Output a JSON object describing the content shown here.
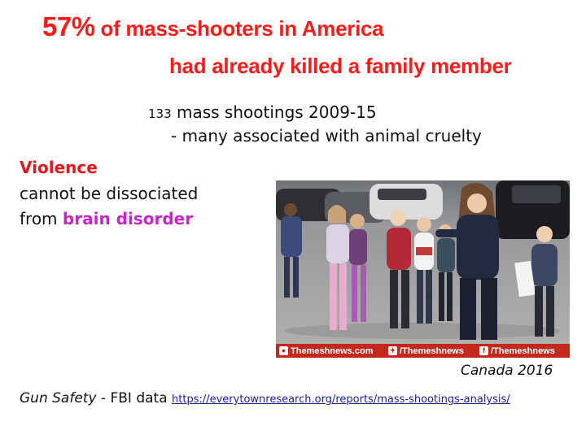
{
  "title": {
    "percent": "57%",
    "line1_rest": " of mass-shooters in America",
    "line2": "had already killed a family member"
  },
  "stat": {
    "count": "133",
    "line1_rest": " mass shootings 2009-15",
    "line2": "- many associated with animal cruelty"
  },
  "violence": {
    "heading": "Violence",
    "line2": "cannot be dissociated",
    "line3_prefix": "from ",
    "line3_highlight": "brain disorder"
  },
  "photo": {
    "watermark_site": "Themeshnews.com",
    "watermark_twitter": "/Themeshnews",
    "watermark_facebook": "/Themeshnews",
    "caption": "Canada 2016"
  },
  "footer": {
    "label_italic": "Gun Safety",
    "label_plain": " - FBI data ",
    "link": "https://everytownresearch.org/reports/mass-shootings-analysis/"
  },
  "colors": {
    "title_red": "#ff1a1a",
    "violence_red": "#e8161b",
    "highlight_magenta": "#cc22cc",
    "link_blue": "#1a1aa6",
    "watermark_bar": "#c4281c"
  }
}
